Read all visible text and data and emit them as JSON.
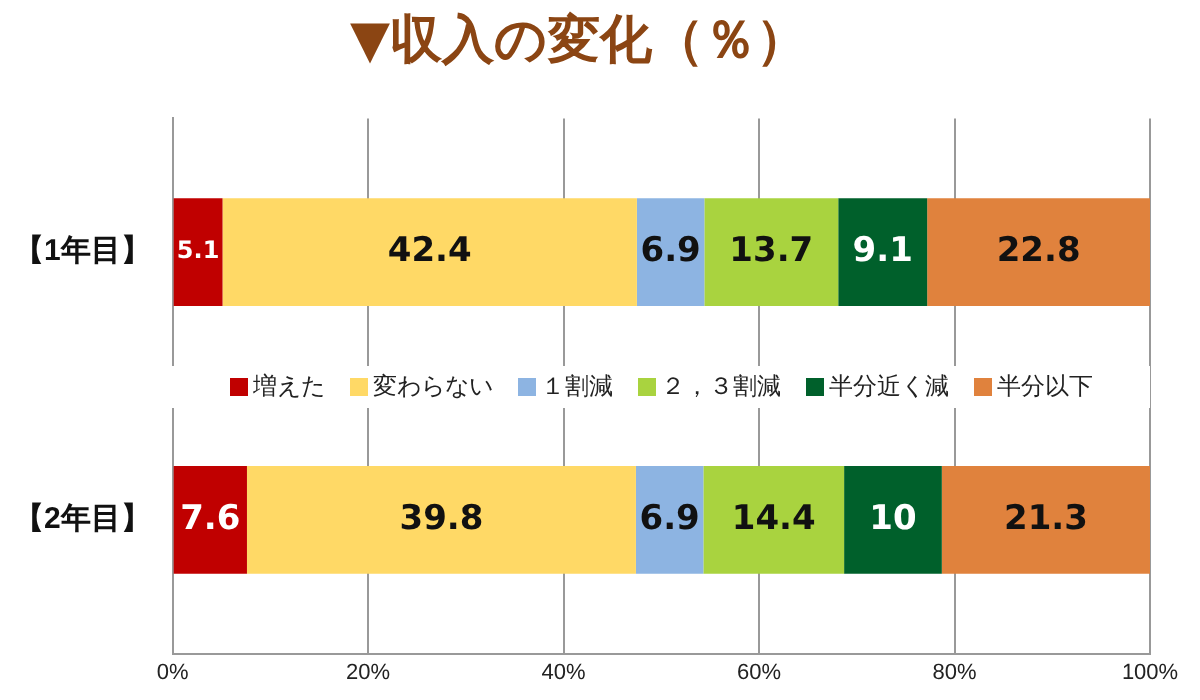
{
  "chart_data": {
    "type": "bar",
    "orientation": "horizontal",
    "stacked": true,
    "title": "▼収入の変化（％）",
    "categories": [
      "【1年目】",
      "【2年目】"
    ],
    "series": [
      {
        "name": "増えた",
        "color": "#c00000",
        "values": [
          5.1,
          7.6
        ]
      },
      {
        "name": "変わらない",
        "color": "#ffd966",
        "values": [
          42.4,
          39.8
        ]
      },
      {
        "name": "１割減",
        "color": "#8db4e2",
        "values": [
          6.9,
          6.9
        ]
      },
      {
        "name": "２，３割減",
        "color": "#a9d33f",
        "values": [
          13.7,
          14.4
        ]
      },
      {
        "name": "半分近く減",
        "color": "#00602b",
        "values": [
          9.1,
          10
        ]
      },
      {
        "name": "半分以下",
        "color": "#e0823d",
        "values": [
          22.8,
          21.3
        ]
      }
    ],
    "xlim": [
      0,
      100
    ],
    "xticks": [
      {
        "value": 0,
        "label": "0%"
      },
      {
        "value": 20,
        "label": "20%"
      },
      {
        "value": 40,
        "label": "40%"
      },
      {
        "value": 60,
        "label": "60%"
      },
      {
        "value": 80,
        "label": "80%"
      },
      {
        "value": 100,
        "label": "100%"
      }
    ],
    "grid": "x",
    "legend": "center",
    "data_labels": true
  }
}
